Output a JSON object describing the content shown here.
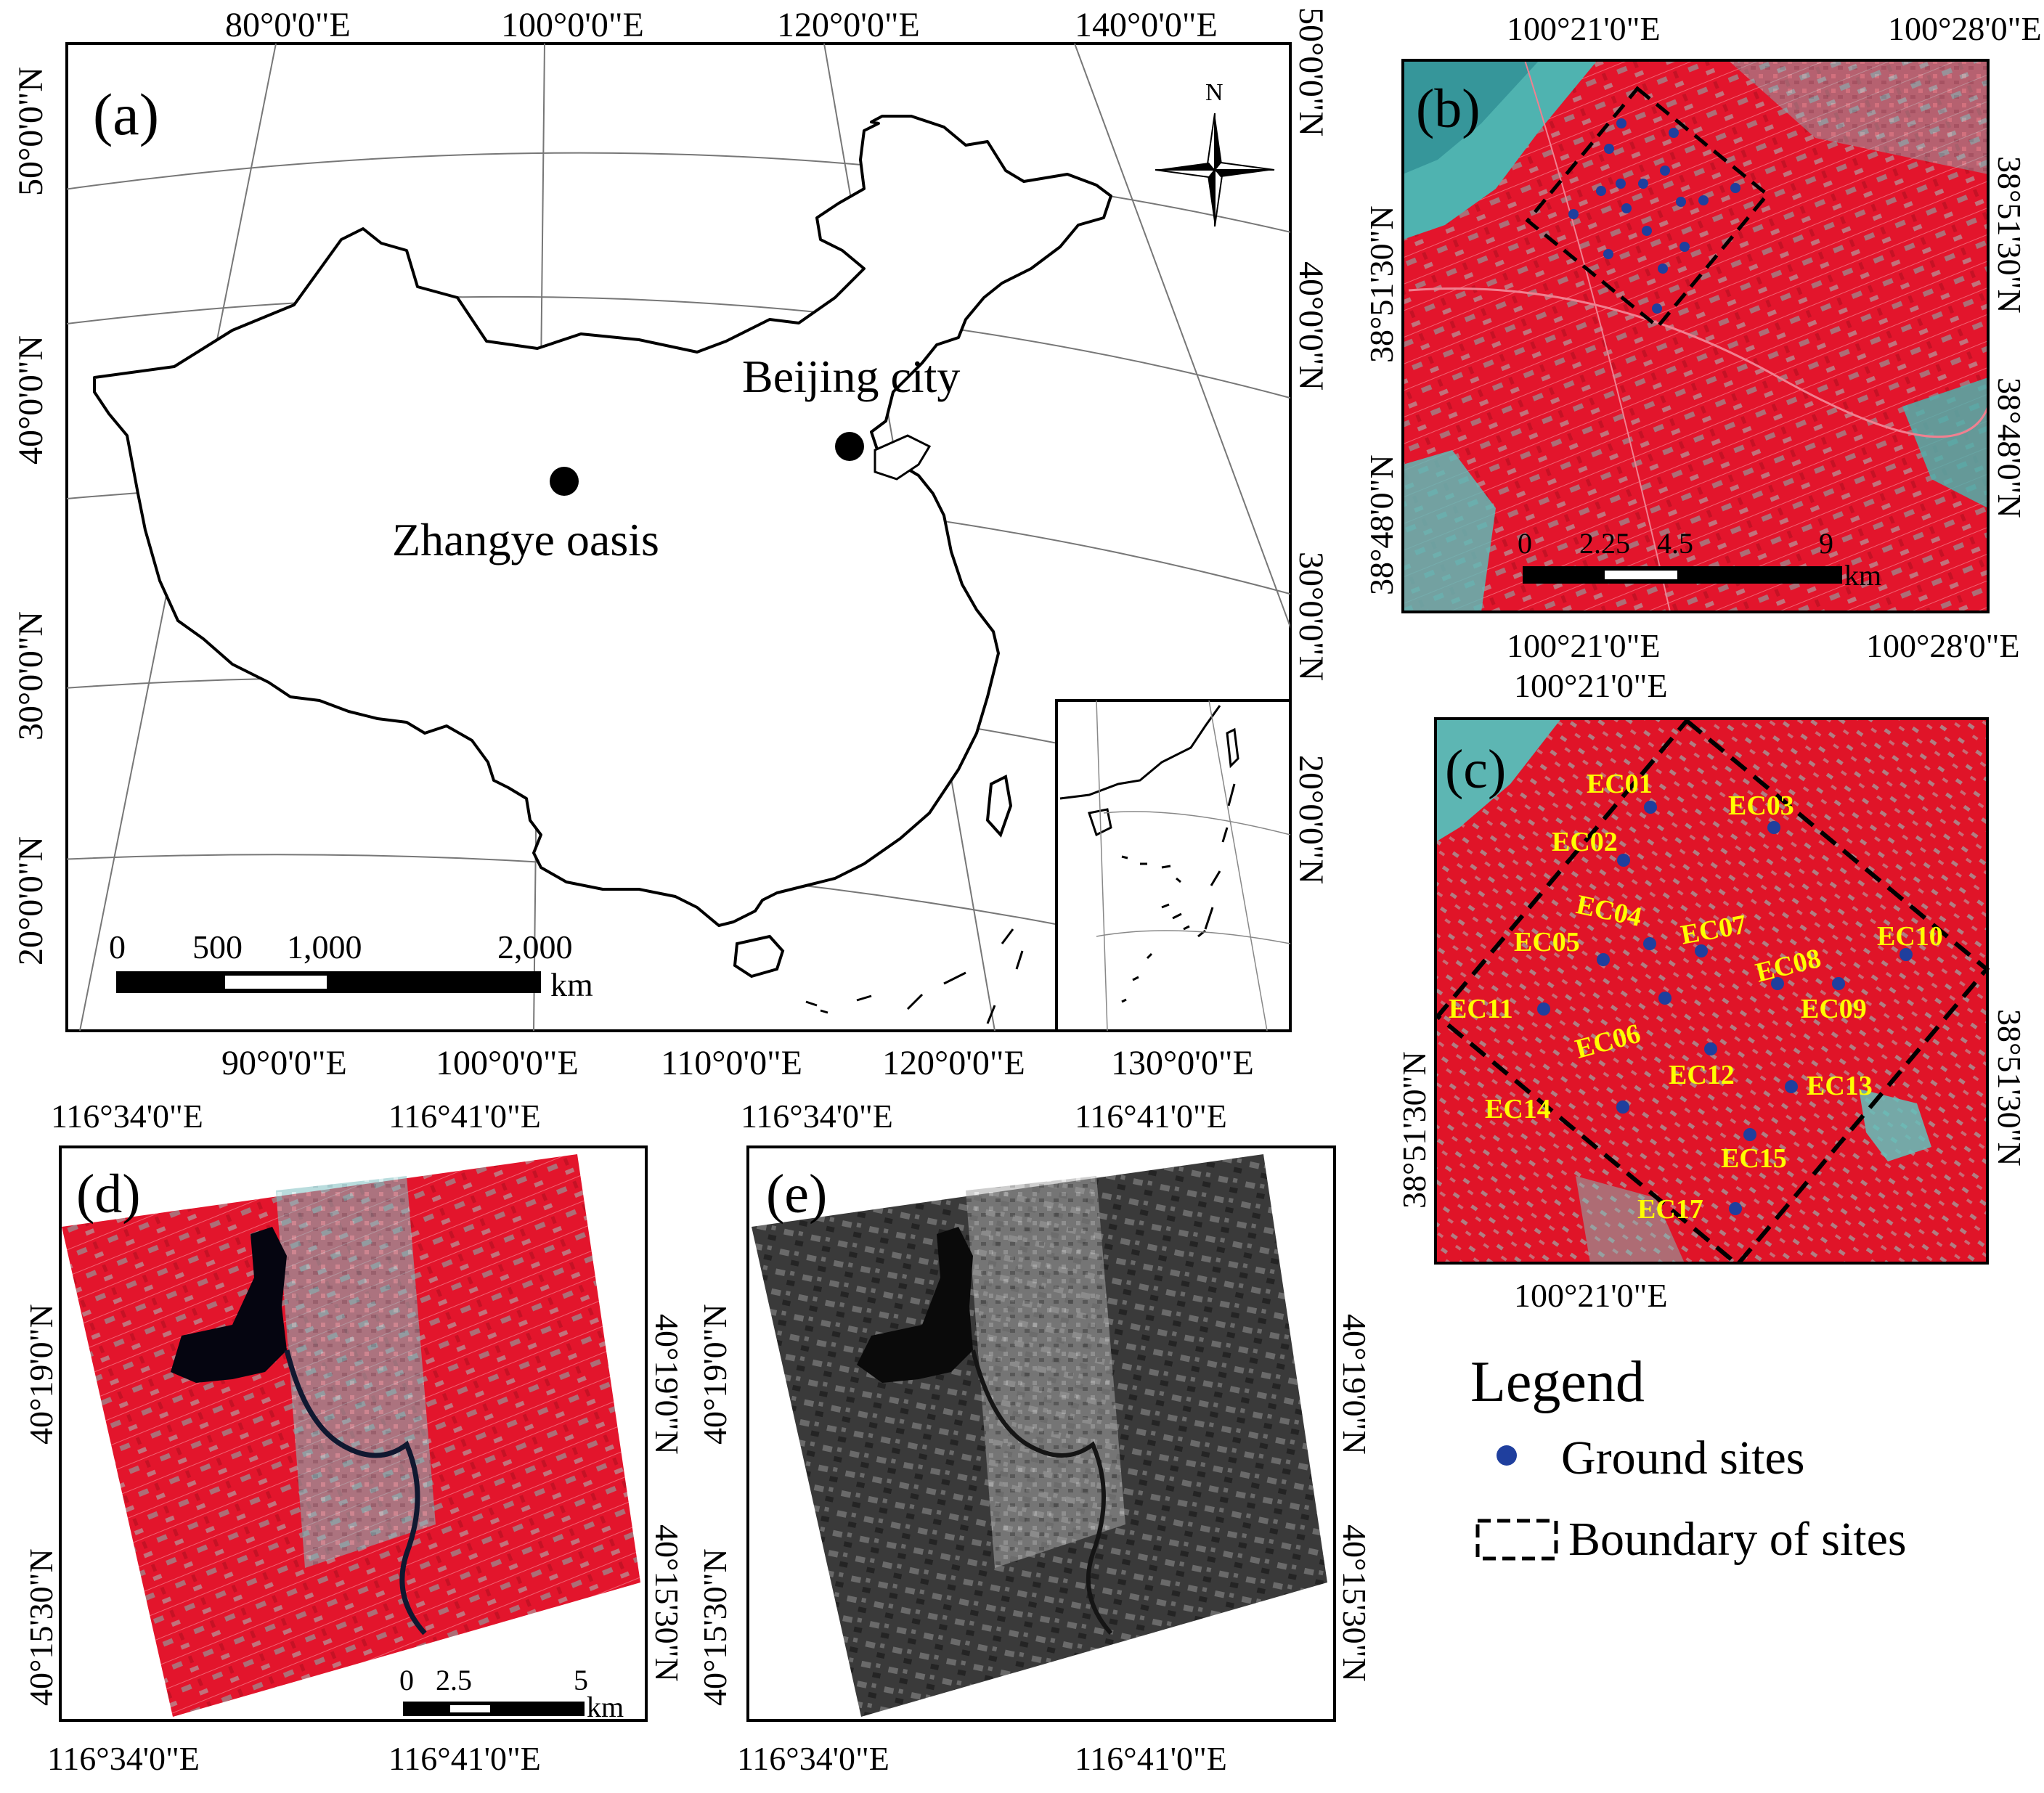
{
  "colors": {
    "site_dot": "#1f3f9e",
    "ec_label": "#ffff00",
    "false_color_red": "#e3152c",
    "false_color_cyan": "#6fc9c2",
    "grayscale_dark": "#2d2d2d",
    "frame": "#000000"
  },
  "panel_a": {
    "label": "(a)",
    "top_lon_labels": [
      "80°0'0\"E",
      "100°0'0\"E",
      "120°0'0\"E",
      "140°0'0\"E"
    ],
    "bottom_lon_labels": [
      "90°0'0\"E",
      "100°0'0\"E",
      "110°0'0\"E",
      "120°0'0\"E",
      "130°0'0\"E"
    ],
    "left_lat_labels": [
      "50°0'0\"N",
      "40°0'0\"N",
      "30°0'0\"N",
      "20°0'0\"N"
    ],
    "right_lat_labels": [
      "50°0'0\"N",
      "40°0'0\"N",
      "30°0'0\"N",
      "20°0'0\"N"
    ],
    "north_arrow_label": "N",
    "places": [
      "Beijing city",
      "Zhangye oasis"
    ],
    "scale_bar": {
      "ticks": [
        "0",
        "500",
        "1,000",
        "2,000"
      ],
      "unit": "km"
    }
  },
  "panel_b": {
    "label": "(b)",
    "top_lon_labels": [
      "100°21'0\"E",
      "100°28'0\"E"
    ],
    "bottom_lon_labels": [
      "100°21'0\"E",
      "100°28'0\"E"
    ],
    "left_lat_labels": [
      "38°51'30\"N",
      "38°48'0\"N"
    ],
    "right_lat_labels": [
      "38°51'30\"N",
      "38°48'0\"N"
    ],
    "scale_bar": {
      "ticks": [
        "0",
        "2.25",
        "4.5",
        "9"
      ],
      "unit": "km"
    }
  },
  "panel_c": {
    "label": "(c)",
    "top_lon_label": "100°21'0\"E",
    "bottom_lon_label": "100°21'0\"E",
    "left_lat_label": "38°51'30\"N",
    "right_lat_label": "38°51'30\"N",
    "sites": [
      "EC01",
      "EC02",
      "EC03",
      "EC04",
      "EC05",
      "EC06",
      "EC07",
      "EC08",
      "EC09",
      "EC10",
      "EC11",
      "EC12",
      "EC13",
      "EC14",
      "EC15",
      "EC17"
    ]
  },
  "panel_d": {
    "label": "(d)",
    "top_lon_labels": [
      "116°34'0\"E",
      "116°41'0\"E"
    ],
    "bottom_lon_labels": [
      "116°34'0\"E",
      "116°41'0\"E"
    ],
    "left_lat_labels": [
      "40°19'0\"N",
      "40°15'30\"N"
    ],
    "right_lat_labels": [
      "40°19'0\"N",
      "40°15'30\"N"
    ],
    "scale_bar": {
      "ticks": [
        "0",
        "2.5",
        "5"
      ],
      "unit": "km"
    }
  },
  "panel_e": {
    "label": "(e)",
    "top_lon_labels": [
      "116°34'0\"E",
      "116°41'0\"E"
    ],
    "bottom_lon_labels": [
      "116°34'0\"E",
      "116°41'0\"E"
    ],
    "left_lat_labels": [
      "40°19'0\"N",
      "40°15'30\"N"
    ],
    "right_lat_labels": [
      "40°19'0\"N",
      "40°15'30\"N"
    ]
  },
  "legend": {
    "title": "Legend",
    "items": [
      {
        "label": "Ground sites",
        "symbol": "dot"
      },
      {
        "label": "Boundary of sites",
        "symbol": "dashed-box"
      }
    ]
  }
}
